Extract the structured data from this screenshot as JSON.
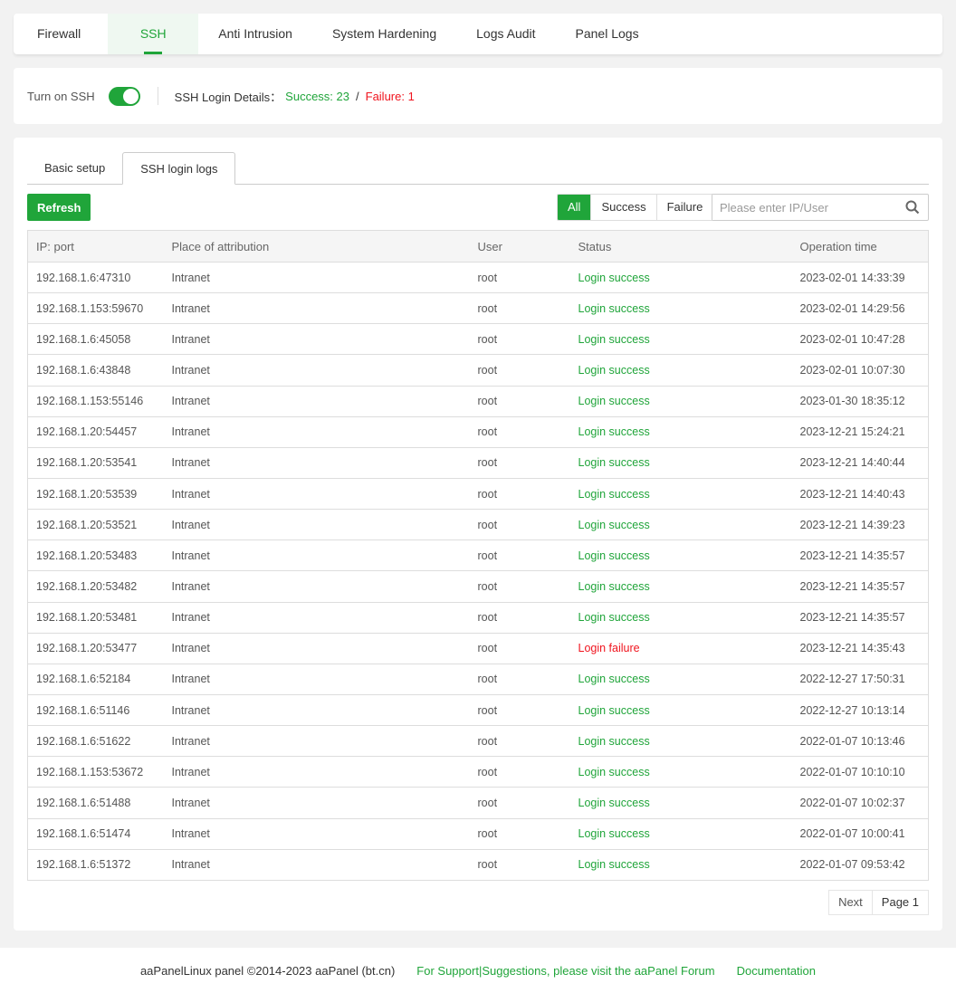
{
  "nav": {
    "tabs": [
      "Firewall",
      "SSH",
      "Anti Intrusion",
      "System Hardening",
      "Logs Audit",
      "Panel Logs"
    ],
    "active": "SSH"
  },
  "ssh": {
    "toggle_label": "Turn on SSH",
    "enabled": true,
    "details_label": "SSH Login Details：",
    "success": "Success: 23",
    "sep": "/",
    "failure": "Failure: 1"
  },
  "subtabs": [
    "Basic setup",
    "SSH login logs"
  ],
  "toolbar": {
    "refresh": "Refresh",
    "filters": [
      "All",
      "Success",
      "Failure"
    ],
    "search_placeholder": "Please enter IP/User"
  },
  "table": {
    "headers": [
      "IP: port",
      "Place of attribution",
      "User",
      "Status",
      "Operation time"
    ],
    "rows": [
      [
        "192.168.1.6:47310",
        "Intranet",
        "root",
        "Login success",
        "2023-02-01 14:33:39"
      ],
      [
        "192.168.1.153:59670",
        "Intranet",
        "root",
        "Login success",
        "2023-02-01 14:29:56"
      ],
      [
        "192.168.1.6:45058",
        "Intranet",
        "root",
        "Login success",
        "2023-02-01 10:47:28"
      ],
      [
        "192.168.1.6:43848",
        "Intranet",
        "root",
        "Login success",
        "2023-02-01 10:07:30"
      ],
      [
        "192.168.1.153:55146",
        "Intranet",
        "root",
        "Login success",
        "2023-01-30 18:35:12"
      ],
      [
        "192.168.1.20:54457",
        "Intranet",
        "root",
        "Login success",
        "2023-12-21 15:24:21"
      ],
      [
        "192.168.1.20:53541",
        "Intranet",
        "root",
        "Login success",
        "2023-12-21 14:40:44"
      ],
      [
        "192.168.1.20:53539",
        "Intranet",
        "root",
        "Login success",
        "2023-12-21 14:40:43"
      ],
      [
        "192.168.1.20:53521",
        "Intranet",
        "root",
        "Login success",
        "2023-12-21 14:39:23"
      ],
      [
        "192.168.1.20:53483",
        "Intranet",
        "root",
        "Login success",
        "2023-12-21 14:35:57"
      ],
      [
        "192.168.1.20:53482",
        "Intranet",
        "root",
        "Login success",
        "2023-12-21 14:35:57"
      ],
      [
        "192.168.1.20:53481",
        "Intranet",
        "root",
        "Login success",
        "2023-12-21 14:35:57"
      ],
      [
        "192.168.1.20:53477",
        "Intranet",
        "root",
        "Login failure",
        "2023-12-21 14:35:43"
      ],
      [
        "192.168.1.6:52184",
        "Intranet",
        "root",
        "Login success",
        "2022-12-27 17:50:31"
      ],
      [
        "192.168.1.6:51146",
        "Intranet",
        "root",
        "Login success",
        "2022-12-27 10:13:14"
      ],
      [
        "192.168.1.6:51622",
        "Intranet",
        "root",
        "Login success",
        "2022-01-07 10:13:46"
      ],
      [
        "192.168.1.153:53672",
        "Intranet",
        "root",
        "Login success",
        "2022-01-07 10:10:10"
      ],
      [
        "192.168.1.6:51488",
        "Intranet",
        "root",
        "Login success",
        "2022-01-07 10:02:37"
      ],
      [
        "192.168.1.6:51474",
        "Intranet",
        "root",
        "Login success",
        "2022-01-07 10:00:41"
      ],
      [
        "192.168.1.6:51372",
        "Intranet",
        "root",
        "Login success",
        "2022-01-07 09:53:42"
      ]
    ]
  },
  "pager": {
    "next": "Next",
    "page": "Page 1"
  },
  "footer": {
    "copyright": "aaPanelLinux panel ©2014-2023 aaPanel (bt.cn)",
    "support": "For Support|Suggestions, please visit the aaPanel Forum",
    "docs": "Documentation"
  },
  "colors": {
    "accent": "#20a53a",
    "failure": "#f0141e"
  }
}
